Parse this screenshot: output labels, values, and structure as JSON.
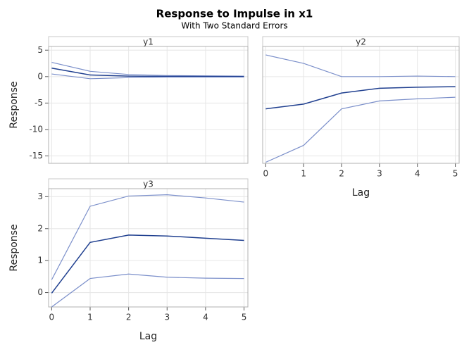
{
  "title": "Response to Impulse in x1",
  "subtitle": "With Two Standard Errors",
  "chart_data": [
    {
      "type": "line",
      "title": "y1",
      "ylabel": "Response",
      "x": [
        0,
        1,
        2,
        3,
        4,
        5
      ],
      "xlim": [
        -0.08,
        5.1
      ],
      "xticks": [
        0,
        1,
        2,
        3,
        4,
        5
      ],
      "ylim": [
        -16.4,
        5.7
      ],
      "yticks": [
        5,
        0,
        -5,
        -10,
        -15
      ],
      "grid": true,
      "show_xtick_labels": false,
      "show_ytick_labels": true,
      "series": [
        {
          "color": "#7b8fca",
          "values": [
            2.7,
            1.0,
            0.4,
            0.2,
            0.15,
            0.1
          ]
        },
        {
          "color": "#1f3f8f",
          "values": [
            1.6,
            0.3,
            0.1,
            0.05,
            0.02,
            0.01
          ]
        },
        {
          "color": "#7b8fca",
          "values": [
            0.5,
            -0.4,
            -0.2,
            -0.1,
            -0.1,
            -0.1
          ]
        }
      ]
    },
    {
      "type": "line",
      "title": "y2",
      "xlabel": "Lag",
      "x": [
        0,
        1,
        2,
        3,
        4,
        5
      ],
      "xlim": [
        -0.08,
        5.1
      ],
      "xticks": [
        0,
        1,
        2,
        3,
        4,
        5
      ],
      "ylim": [
        -16.4,
        5.7
      ],
      "yticks": [
        5,
        0,
        -5,
        -10,
        -15
      ],
      "grid": true,
      "show_xtick_labels": true,
      "show_ytick_labels": false,
      "series": [
        {
          "color": "#7b8fca",
          "values": [
            4.1,
            2.5,
            0.0,
            0.0,
            0.1,
            0.0
          ]
        },
        {
          "color": "#1f3f8f",
          "values": [
            -6.1,
            -5.2,
            -3.1,
            -2.2,
            -2.0,
            -1.9
          ]
        },
        {
          "color": "#7b8fca",
          "values": [
            -16.2,
            -13.0,
            -6.1,
            -4.6,
            -4.2,
            -3.9
          ]
        }
      ]
    },
    {
      "type": "line",
      "title": "y3",
      "xlabel": "Lag",
      "ylabel": "Response",
      "x": [
        0,
        1,
        2,
        3,
        4,
        5
      ],
      "xlim": [
        -0.08,
        5.1
      ],
      "xticks": [
        0,
        1,
        2,
        3,
        4,
        5
      ],
      "ylim": [
        -0.45,
        3.25
      ],
      "yticks": [
        0,
        1,
        2,
        3
      ],
      "grid": true,
      "show_xtick_labels": true,
      "show_ytick_labels": true,
      "series": [
        {
          "color": "#7b8fca",
          "values": [
            0.4,
            2.7,
            3.02,
            3.06,
            2.96,
            2.83
          ]
        },
        {
          "color": "#1f3f8f",
          "values": [
            -0.02,
            1.57,
            1.8,
            1.77,
            1.7,
            1.63
          ]
        },
        {
          "color": "#7b8fca",
          "values": [
            -0.45,
            0.44,
            0.58,
            0.48,
            0.45,
            0.44
          ]
        }
      ]
    }
  ]
}
